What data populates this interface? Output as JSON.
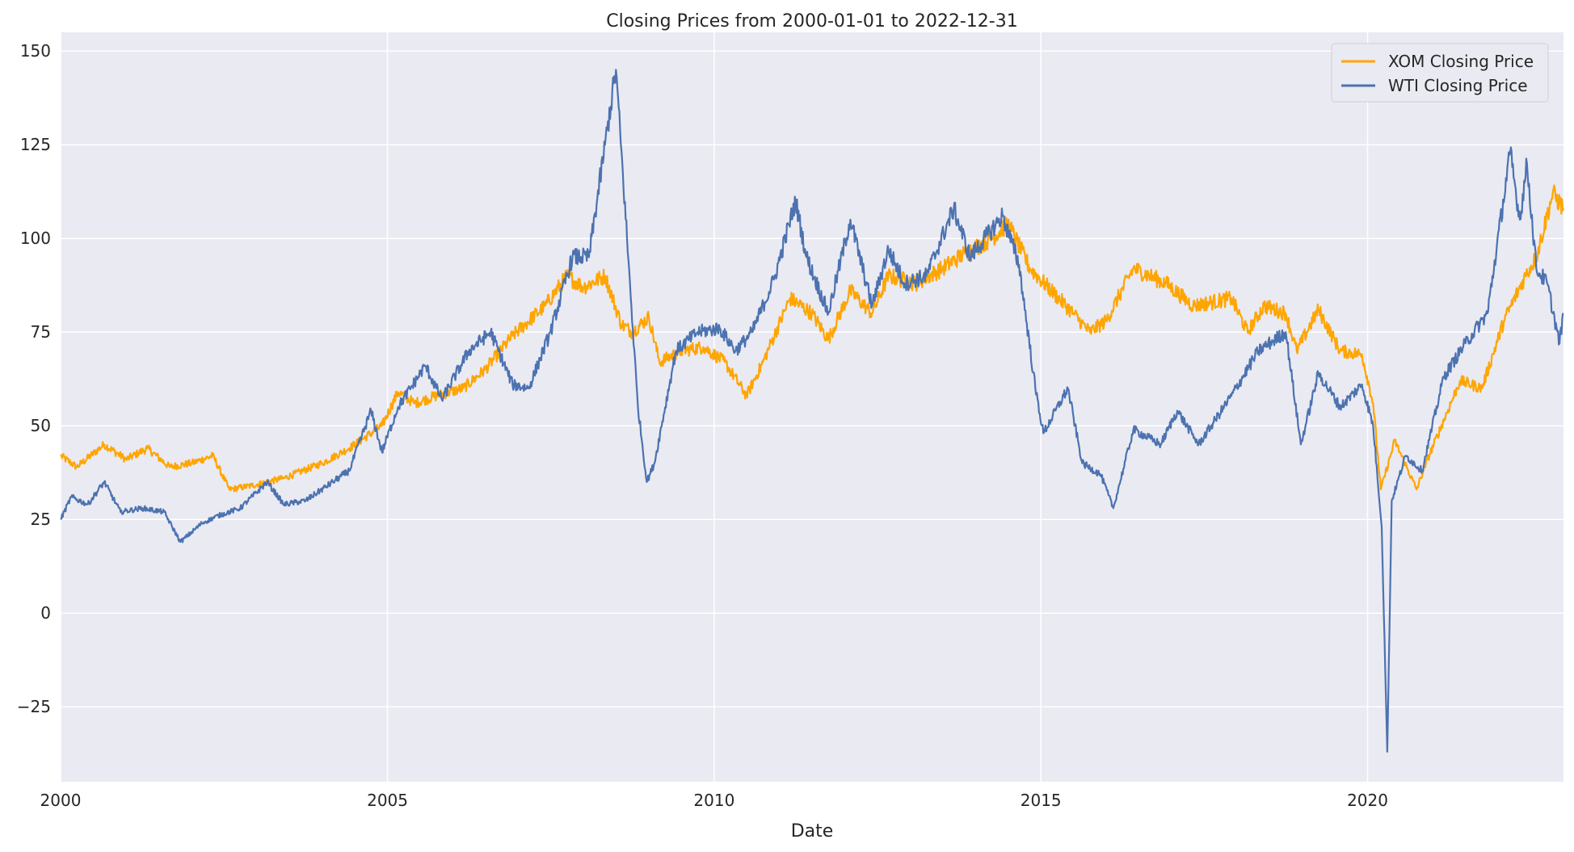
{
  "chart_data": {
    "type": "line",
    "title": "Closing Prices from 2000-01-01 to 2022-12-31",
    "xlabel": "Date",
    "ylabel": "",
    "xlim": [
      "2000-01-01",
      "2022-12-31"
    ],
    "ylim": [
      -45,
      155
    ],
    "xticks": [
      "2000",
      "2005",
      "2010",
      "2015",
      "2020"
    ],
    "yticks": [
      -25,
      0,
      25,
      50,
      75,
      100,
      125,
      150
    ],
    "grid": true,
    "legend": "top-right",
    "colors": {
      "background": "#eaeaf2",
      "grid": "#ffffff",
      "xom": "#ffa500",
      "wti": "#4c72b0"
    },
    "series": [
      {
        "name": "XOM Closing Price",
        "color": "#ffa500",
        "points": [
          [
            "2000-01-01",
            42
          ],
          [
            "2000-04-01",
            39
          ],
          [
            "2000-09-01",
            45
          ],
          [
            "2001-01-01",
            41
          ],
          [
            "2001-05-01",
            44
          ],
          [
            "2001-09-01",
            39
          ],
          [
            "2002-01-01",
            40
          ],
          [
            "2002-05-01",
            42
          ],
          [
            "2002-08-01",
            33
          ],
          [
            "2002-12-01",
            34
          ],
          [
            "2003-06-01",
            36
          ],
          [
            "2004-01-01",
            40
          ],
          [
            "2004-06-01",
            44
          ],
          [
            "2004-12-01",
            50
          ],
          [
            "2005-03-01",
            59
          ],
          [
            "2005-06-01",
            56
          ],
          [
            "2005-10-01",
            58
          ],
          [
            "2006-03-01",
            60
          ],
          [
            "2006-07-01",
            65
          ],
          [
            "2006-12-01",
            74
          ],
          [
            "2007-06-01",
            82
          ],
          [
            "2007-10-01",
            90
          ],
          [
            "2008-01-01",
            87
          ],
          [
            "2008-05-01",
            90
          ],
          [
            "2008-08-01",
            77
          ],
          [
            "2008-10-01",
            75
          ],
          [
            "2009-01-01",
            79
          ],
          [
            "2009-03-01",
            67
          ],
          [
            "2009-07-01",
            70
          ],
          [
            "2009-11-01",
            71
          ],
          [
            "2010-03-01",
            67
          ],
          [
            "2010-07-01",
            58
          ],
          [
            "2010-10-01",
            67
          ],
          [
            "2011-03-01",
            84
          ],
          [
            "2011-07-01",
            80
          ],
          [
            "2011-10-01",
            73
          ],
          [
            "2012-02-01",
            86
          ],
          [
            "2012-06-01",
            80
          ],
          [
            "2012-09-01",
            90
          ],
          [
            "2013-02-01",
            88
          ],
          [
            "2013-07-01",
            92
          ],
          [
            "2013-11-01",
            96
          ],
          [
            "2014-04-01",
            100
          ],
          [
            "2014-07-01",
            104
          ],
          [
            "2014-11-01",
            92
          ],
          [
            "2015-03-01",
            86
          ],
          [
            "2015-07-01",
            80
          ],
          [
            "2015-10-01",
            75
          ],
          [
            "2016-01-01",
            78
          ],
          [
            "2016-06-01",
            92
          ],
          [
            "2016-12-01",
            88
          ],
          [
            "2017-05-01",
            82
          ],
          [
            "2017-12-01",
            84
          ],
          [
            "2018-03-01",
            75
          ],
          [
            "2018-06-01",
            82
          ],
          [
            "2018-10-01",
            80
          ],
          [
            "2018-12-01",
            70
          ],
          [
            "2019-04-01",
            81
          ],
          [
            "2019-08-01",
            70
          ],
          [
            "2019-12-01",
            69
          ],
          [
            "2020-02-01",
            56
          ],
          [
            "2020-03-15",
            33
          ],
          [
            "2020-06-01",
            46
          ],
          [
            "2020-10-01",
            33
          ],
          [
            "2020-12-01",
            41
          ],
          [
            "2021-06-01",
            62
          ],
          [
            "2021-10-01",
            60
          ],
          [
            "2022-02-01",
            78
          ],
          [
            "2022-06-01",
            90
          ],
          [
            "2022-08-01",
            95
          ],
          [
            "2022-11-01",
            112
          ],
          [
            "2022-12-31",
            108
          ]
        ]
      },
      {
        "name": "WTI Closing Price",
        "color": "#4c72b0",
        "points": [
          [
            "2000-01-01",
            25
          ],
          [
            "2000-03-01",
            31
          ],
          [
            "2000-06-01",
            29
          ],
          [
            "2000-09-01",
            35
          ],
          [
            "2000-12-01",
            27
          ],
          [
            "2001-04-01",
            28
          ],
          [
            "2001-08-01",
            27
          ],
          [
            "2001-11-01",
            19
          ],
          [
            "2002-03-01",
            24
          ],
          [
            "2002-06-01",
            26
          ],
          [
            "2002-10-01",
            28
          ],
          [
            "2003-03-01",
            35
          ],
          [
            "2003-06-01",
            29
          ],
          [
            "2003-10-01",
            30
          ],
          [
            "2004-03-01",
            35
          ],
          [
            "2004-06-01",
            38
          ],
          [
            "2004-10-01",
            54
          ],
          [
            "2004-12-01",
            43
          ],
          [
            "2005-03-01",
            55
          ],
          [
            "2005-08-01",
            66
          ],
          [
            "2005-11-01",
            57
          ],
          [
            "2006-04-01",
            70
          ],
          [
            "2006-08-01",
            75
          ],
          [
            "2006-12-01",
            61
          ],
          [
            "2007-03-01",
            60
          ],
          [
            "2007-07-01",
            75
          ],
          [
            "2007-11-01",
            95
          ],
          [
            "2008-02-01",
            95
          ],
          [
            "2008-05-01",
            125
          ],
          [
            "2008-07-01",
            145
          ],
          [
            "2008-09-01",
            100
          ],
          [
            "2008-11-01",
            55
          ],
          [
            "2008-12-20",
            35
          ],
          [
            "2009-02-01",
            40
          ],
          [
            "2009-06-01",
            70
          ],
          [
            "2009-10-01",
            75
          ],
          [
            "2010-02-01",
            76
          ],
          [
            "2010-05-01",
            70
          ],
          [
            "2010-08-01",
            75
          ],
          [
            "2010-12-01",
            89
          ],
          [
            "2011-04-01",
            110
          ],
          [
            "2011-06-01",
            95
          ],
          [
            "2011-10-01",
            80
          ],
          [
            "2012-02-01",
            105
          ],
          [
            "2012-06-01",
            82
          ],
          [
            "2012-09-01",
            97
          ],
          [
            "2012-12-01",
            88
          ],
          [
            "2013-04-01",
            90
          ],
          [
            "2013-09-01",
            108
          ],
          [
            "2013-12-01",
            95
          ],
          [
            "2014-06-01",
            106
          ],
          [
            "2014-09-01",
            93
          ],
          [
            "2014-12-01",
            60
          ],
          [
            "2015-01-15",
            48
          ],
          [
            "2015-06-01",
            60
          ],
          [
            "2015-08-20",
            40
          ],
          [
            "2015-12-01",
            37
          ],
          [
            "2016-02-10",
            28
          ],
          [
            "2016-06-01",
            49
          ],
          [
            "2016-11-01",
            45
          ],
          [
            "2017-02-01",
            54
          ],
          [
            "2017-06-01",
            45
          ],
          [
            "2017-12-01",
            58
          ],
          [
            "2018-05-01",
            70
          ],
          [
            "2018-10-01",
            75
          ],
          [
            "2018-12-24",
            45
          ],
          [
            "2019-04-01",
            64
          ],
          [
            "2019-08-01",
            55
          ],
          [
            "2019-12-01",
            61
          ],
          [
            "2020-02-01",
            50
          ],
          [
            "2020-03-20",
            23
          ],
          [
            "2020-04-20",
            -37
          ],
          [
            "2020-05-15",
            30
          ],
          [
            "2020-08-01",
            42
          ],
          [
            "2020-11-01",
            38
          ],
          [
            "2021-03-01",
            63
          ],
          [
            "2021-07-01",
            72
          ],
          [
            "2021-11-01",
            80
          ],
          [
            "2022-03-08",
            123
          ],
          [
            "2022-05-01",
            105
          ],
          [
            "2022-06-10",
            120
          ],
          [
            "2022-08-01",
            92
          ],
          [
            "2022-10-01",
            88
          ],
          [
            "2022-12-09",
            72
          ],
          [
            "2022-12-31",
            80
          ]
        ]
      }
    ]
  }
}
